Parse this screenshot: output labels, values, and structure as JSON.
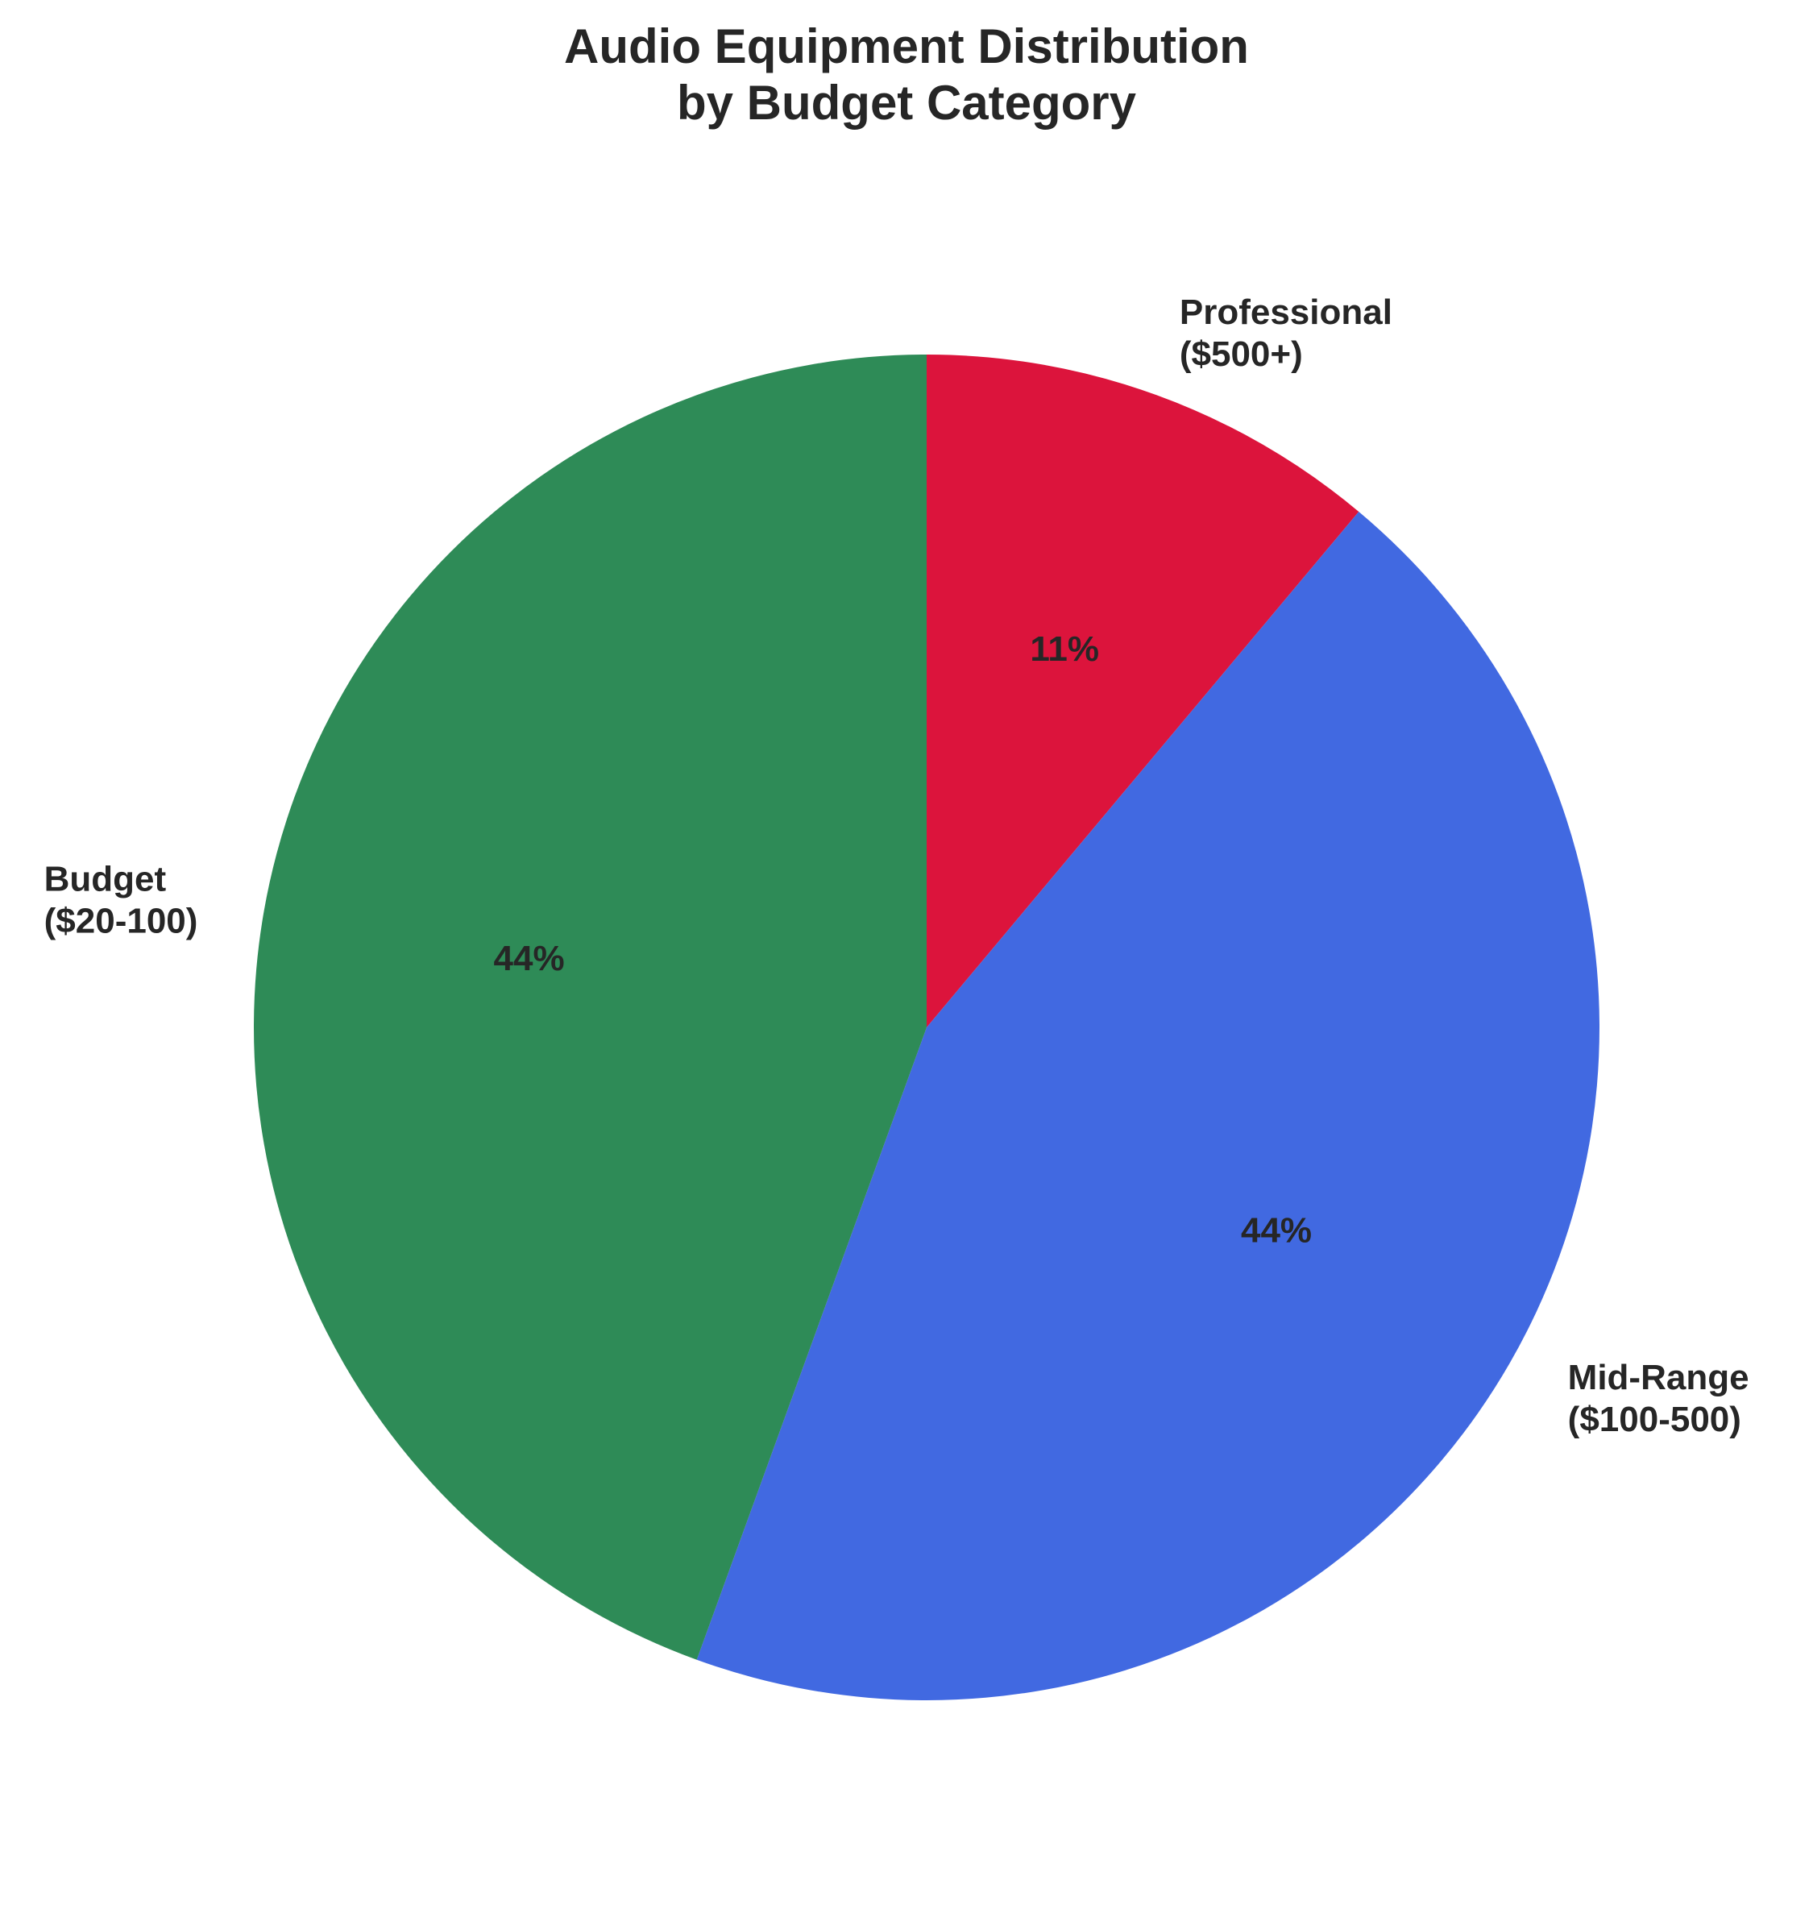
{
  "chart_data": {
    "type": "pie",
    "title_lines": [
      "Audio Equipment Distribution",
      "by Budget Category"
    ],
    "start_angle_deg": 90,
    "direction": "clockwise",
    "slices": [
      {
        "key": "professional",
        "label_lines": [
          "Professional",
          "($500+)"
        ],
        "value": 11.1,
        "pct_label": "11%",
        "color": "#DC143C"
      },
      {
        "key": "midrange",
        "label_lines": [
          "Mid-Range",
          "($100-500)"
        ],
        "value": 44.45,
        "pct_label": "44%",
        "color": "#4169E1"
      },
      {
        "key": "budget",
        "label_lines": [
          "Budget",
          "($20-100)"
        ],
        "value": 44.45,
        "pct_label": "44%",
        "color": "#2E8B57"
      }
    ]
  }
}
